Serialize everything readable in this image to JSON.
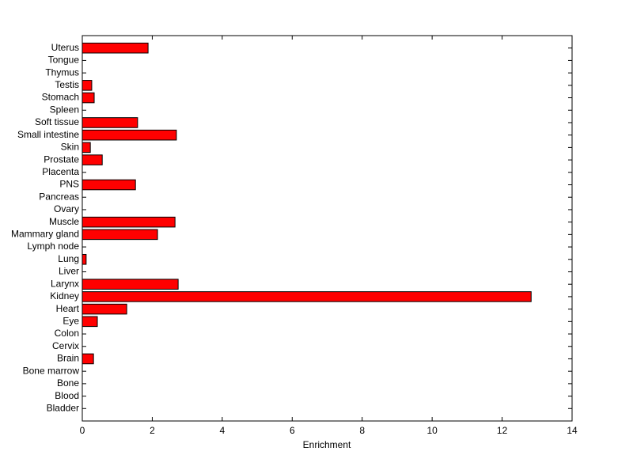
{
  "chart_data": {
    "type": "barh",
    "x_label": "Enrichment",
    "categories": [
      "Bladder",
      "Blood",
      "Bone",
      "Bone marrow",
      "Brain",
      "Cervix",
      "Colon",
      "Eye",
      "Heart",
      "Kidney",
      "Larynx",
      "Liver",
      "Lung",
      "Lymph node",
      "Mammary gland",
      "Muscle",
      "Ovary",
      "Pancreas",
      "PNS",
      "Placenta",
      "Prostate",
      "Skin",
      "Small intestine",
      "Soft tissue",
      "Spleen",
      "Stomach",
      "Testis",
      "Thymus",
      "Tongue",
      "Uterus"
    ],
    "values": [
      0,
      0,
      0,
      0,
      0.32,
      0,
      0,
      0.43,
      1.27,
      12.83,
      2.74,
      0,
      0.11,
      0,
      2.15,
      2.65,
      0,
      0,
      1.52,
      0,
      0.57,
      0.23,
      2.69,
      1.58,
      0,
      0.34,
      0.27,
      0,
      0,
      1.88
    ],
    "color": "#ff0000",
    "xlim": [
      0,
      14
    ],
    "xticks": [
      0,
      2,
      4,
      6,
      8,
      10,
      12,
      14
    ]
  }
}
